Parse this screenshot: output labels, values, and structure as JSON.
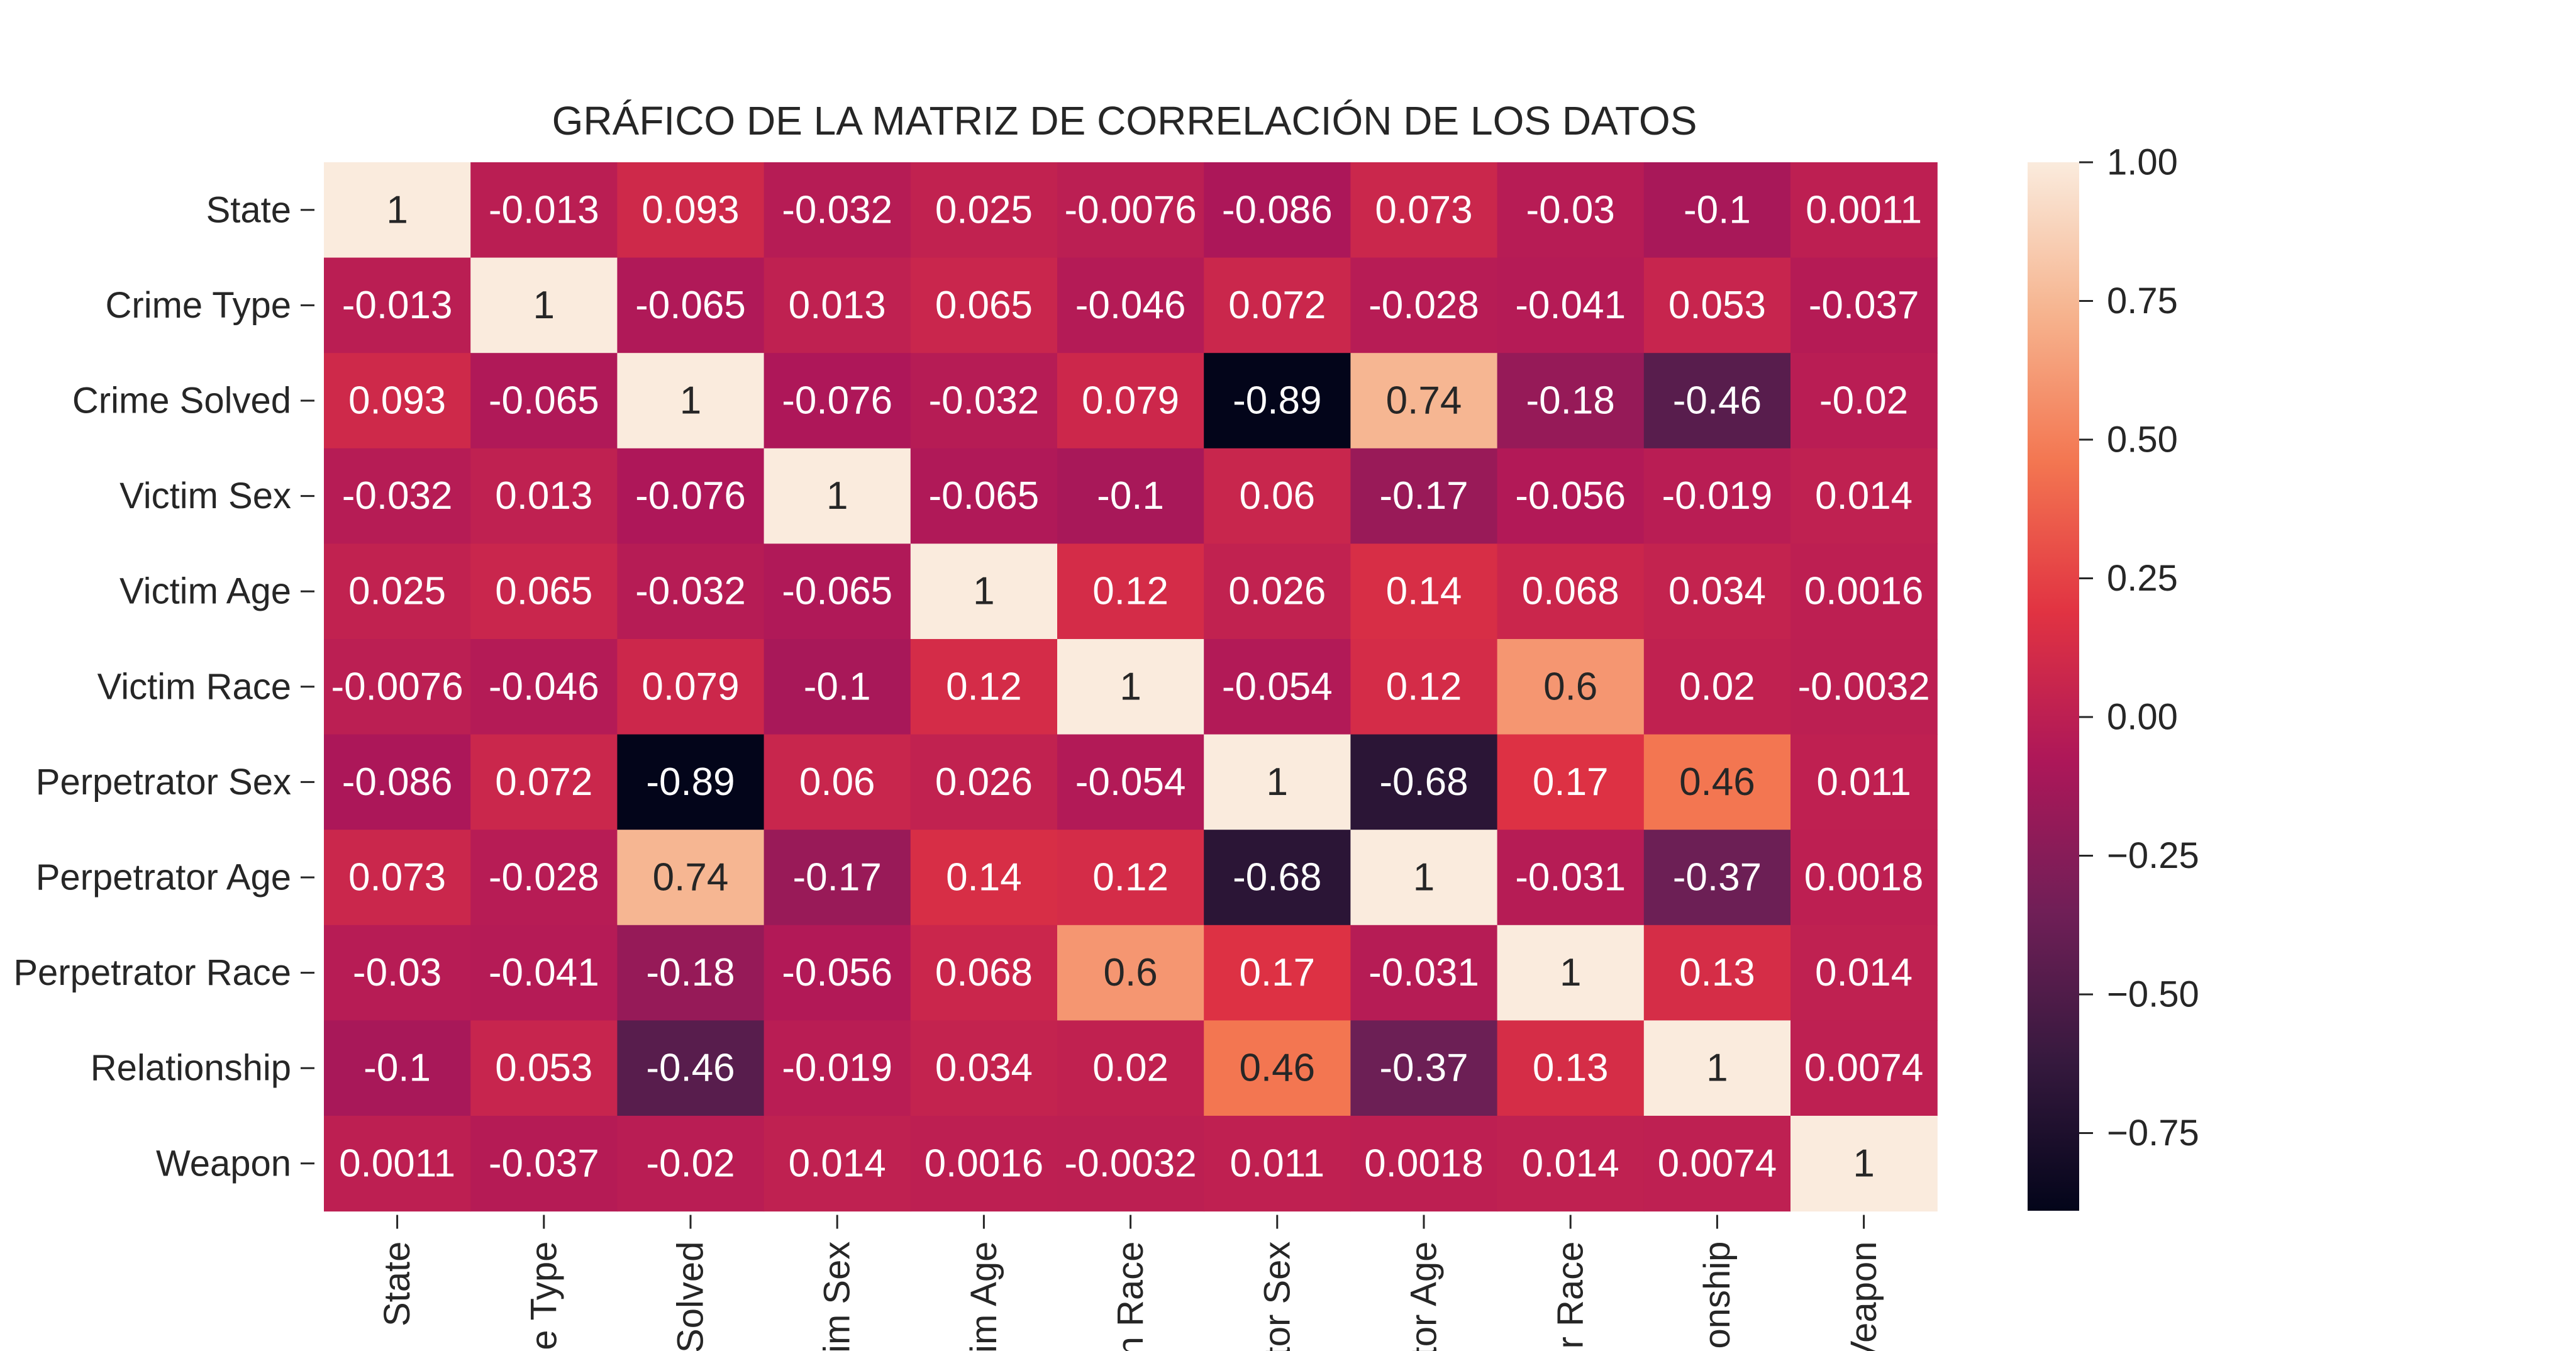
{
  "chart_data": {
    "type": "heatmap",
    "title": "GRÁFICO DE LA MATRIZ DE CORRELACIÓN DE LOS DATOS",
    "row_labels": [
      "State",
      "Crime Type",
      "Crime Solved",
      "Victim Sex",
      "Victim Age",
      "Victim Race",
      "Perpetrator Sex",
      "Perpetrator Age",
      "Perpetrator Race",
      "Relationship",
      "Weapon"
    ],
    "col_labels": [
      "State",
      "e Type",
      "Solved",
      "im Sex",
      "im Age",
      "n Race",
      "tor Sex",
      "tor Age",
      "r Race",
      "onship",
      "Veapon"
    ],
    "matrix": [
      [
        1,
        -0.013,
        0.093,
        -0.032,
        0.025,
        -0.0076,
        -0.086,
        0.073,
        -0.03,
        -0.1,
        0.0011
      ],
      [
        -0.013,
        1,
        -0.065,
        0.013,
        0.065,
        -0.046,
        0.072,
        -0.028,
        -0.041,
        0.053,
        -0.037
      ],
      [
        0.093,
        -0.065,
        1,
        -0.076,
        -0.032,
        0.079,
        -0.89,
        0.74,
        -0.18,
        -0.46,
        -0.02
      ],
      [
        -0.032,
        0.013,
        -0.076,
        1,
        -0.065,
        -0.1,
        0.06,
        -0.17,
        -0.056,
        -0.019,
        0.014
      ],
      [
        0.025,
        0.065,
        -0.032,
        -0.065,
        1,
        0.12,
        0.026,
        0.14,
        0.068,
        0.034,
        0.0016
      ],
      [
        -0.0076,
        -0.046,
        0.079,
        -0.1,
        0.12,
        1,
        -0.054,
        0.12,
        0.6,
        0.02,
        -0.0032
      ],
      [
        -0.086,
        0.072,
        -0.89,
        0.06,
        0.026,
        -0.054,
        1,
        -0.68,
        0.17,
        0.46,
        0.011
      ],
      [
        0.073,
        -0.028,
        0.74,
        -0.17,
        0.14,
        0.12,
        -0.68,
        1,
        -0.031,
        -0.37,
        0.0018
      ],
      [
        -0.03,
        -0.041,
        -0.18,
        -0.056,
        0.068,
        0.6,
        0.17,
        -0.031,
        1,
        0.13,
        0.014
      ],
      [
        -0.1,
        0.053,
        -0.46,
        -0.019,
        0.034,
        0.02,
        0.46,
        -0.37,
        0.13,
        1,
        0.0074
      ],
      [
        0.0011,
        -0.037,
        -0.02,
        0.014,
        0.0016,
        -0.0032,
        0.011,
        0.0018,
        0.014,
        0.0074,
        1
      ]
    ],
    "colorbar": {
      "min": -0.89,
      "max": 1.0,
      "ticks": [
        1.0,
        0.75,
        0.5,
        0.25,
        0.0,
        -0.25,
        -0.5,
        -0.75
      ],
      "tick_labels": [
        "1.00",
        "0.75",
        "0.50",
        "0.25",
        "0.00",
        "−0.25",
        "−0.50",
        "−0.75"
      ],
      "colormap": "rocket",
      "colormap_stops": [
        "#03051a",
        "#36193e",
        "#701f57",
        "#ad1759",
        "#e13342",
        "#f37651",
        "#f6b48f",
        "#faebdd"
      ]
    }
  }
}
